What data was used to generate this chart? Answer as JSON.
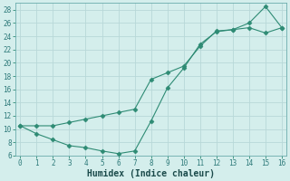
{
  "xlabel": "Humidex (Indice chaleur)",
  "line_color": "#2e8b74",
  "marker": "D",
  "marker_size": 2.5,
  "bg_color": "#d4eeec",
  "grid_color": "#c0dcdc",
  "ylim": [
    6,
    29
  ],
  "xlim": [
    -0.3,
    16.3
  ],
  "yticks": [
    6,
    8,
    10,
    12,
    14,
    16,
    18,
    20,
    22,
    24,
    26,
    28
  ],
  "xticks": [
    0,
    1,
    2,
    3,
    4,
    5,
    6,
    7,
    8,
    9,
    10,
    11,
    12,
    13,
    14,
    15,
    16
  ],
  "tick_fontsize": 5.5,
  "xlabel_fontsize": 7,
  "x_line1": [
    0,
    1,
    2,
    3,
    4,
    5,
    6,
    7,
    8,
    9,
    10,
    11,
    12,
    13,
    14,
    15,
    16
  ],
  "y_line1": [
    10.5,
    9.3,
    8.4,
    7.5,
    7.2,
    6.7,
    6.3,
    6.7,
    11.2,
    16.2,
    19.2,
    22.8,
    24.7,
    25.0,
    26.0,
    28.5,
    25.3
  ],
  "x_line2": [
    0,
    1,
    2,
    3,
    4,
    5,
    6,
    7,
    8,
    9,
    10,
    11,
    12,
    13,
    14,
    15,
    16
  ],
  "y_line2": [
    10.5,
    10.5,
    10.5,
    11.0,
    11.5,
    12.0,
    12.5,
    13.0,
    17.5,
    18.5,
    19.5,
    22.5,
    24.8,
    25.0,
    25.3,
    24.5,
    25.3
  ]
}
